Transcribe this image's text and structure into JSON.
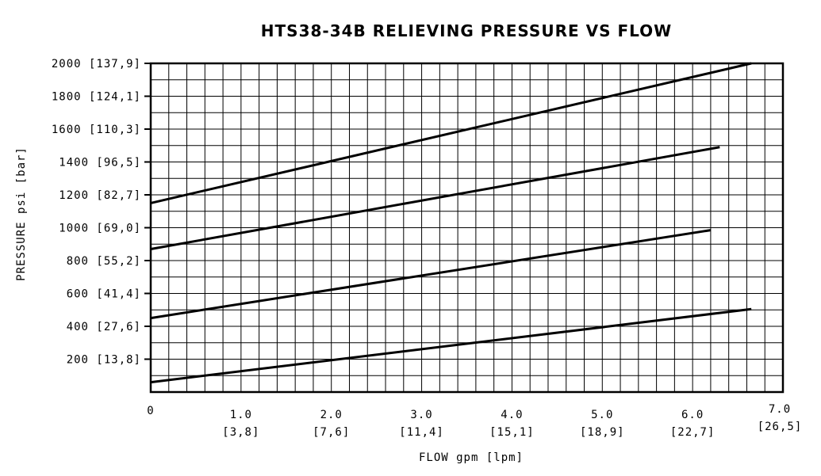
{
  "chart_data": {
    "type": "line",
    "title": "HTS38-34B RELIEVING PRESSURE VS FLOW",
    "xlabel": "FLOW gpm [lpm]",
    "ylabel": "PRESSURE psi [bar]",
    "xlim": [
      0,
      7
    ],
    "ylim": [
      0,
      2000
    ],
    "grid": true,
    "x_ticks": [
      {
        "value": 0,
        "label": "0",
        "sublabel": ""
      },
      {
        "value": 1,
        "label": "1.0",
        "sublabel": "[3,8]"
      },
      {
        "value": 2,
        "label": "2.0",
        "sublabel": "[7,6]"
      },
      {
        "value": 3,
        "label": "3.0",
        "sublabel": "[11,4]"
      },
      {
        "value": 4,
        "label": "4.0",
        "sublabel": "[15,1]"
      },
      {
        "value": 5,
        "label": "5.0",
        "sublabel": "[18,9]"
      },
      {
        "value": 6,
        "label": "6.0",
        "sublabel": "[22,7]"
      },
      {
        "value": 7,
        "label": "7.0",
        "sublabel": "[26,5]"
      }
    ],
    "y_ticks": [
      {
        "value": 200,
        "label": "200 [13,8]"
      },
      {
        "value": 400,
        "label": "400 [27,6]"
      },
      {
        "value": 600,
        "label": "600 [41,4]"
      },
      {
        "value": 800,
        "label": "800 [55,2]"
      },
      {
        "value": 1000,
        "label": "1000 [69,0]"
      },
      {
        "value": 1200,
        "label": "1200 [82,7]"
      },
      {
        "value": 1400,
        "label": "1400 [96,5]"
      },
      {
        "value": 1600,
        "label": "1600 [110,3]"
      },
      {
        "value": 1800,
        "label": "1800 [124,1]"
      },
      {
        "value": 2000,
        "label": "2000 [137,9]"
      }
    ],
    "series": [
      {
        "x": [
          0,
          6.65
        ],
        "y": [
          60,
          505
        ]
      },
      {
        "x": [
          0,
          6.2
        ],
        "y": [
          450,
          985
        ]
      },
      {
        "x": [
          0,
          6.3
        ],
        "y": [
          870,
          1490
        ]
      },
      {
        "x": [
          0,
          6.65
        ],
        "y": [
          1150,
          2000
        ]
      }
    ]
  }
}
